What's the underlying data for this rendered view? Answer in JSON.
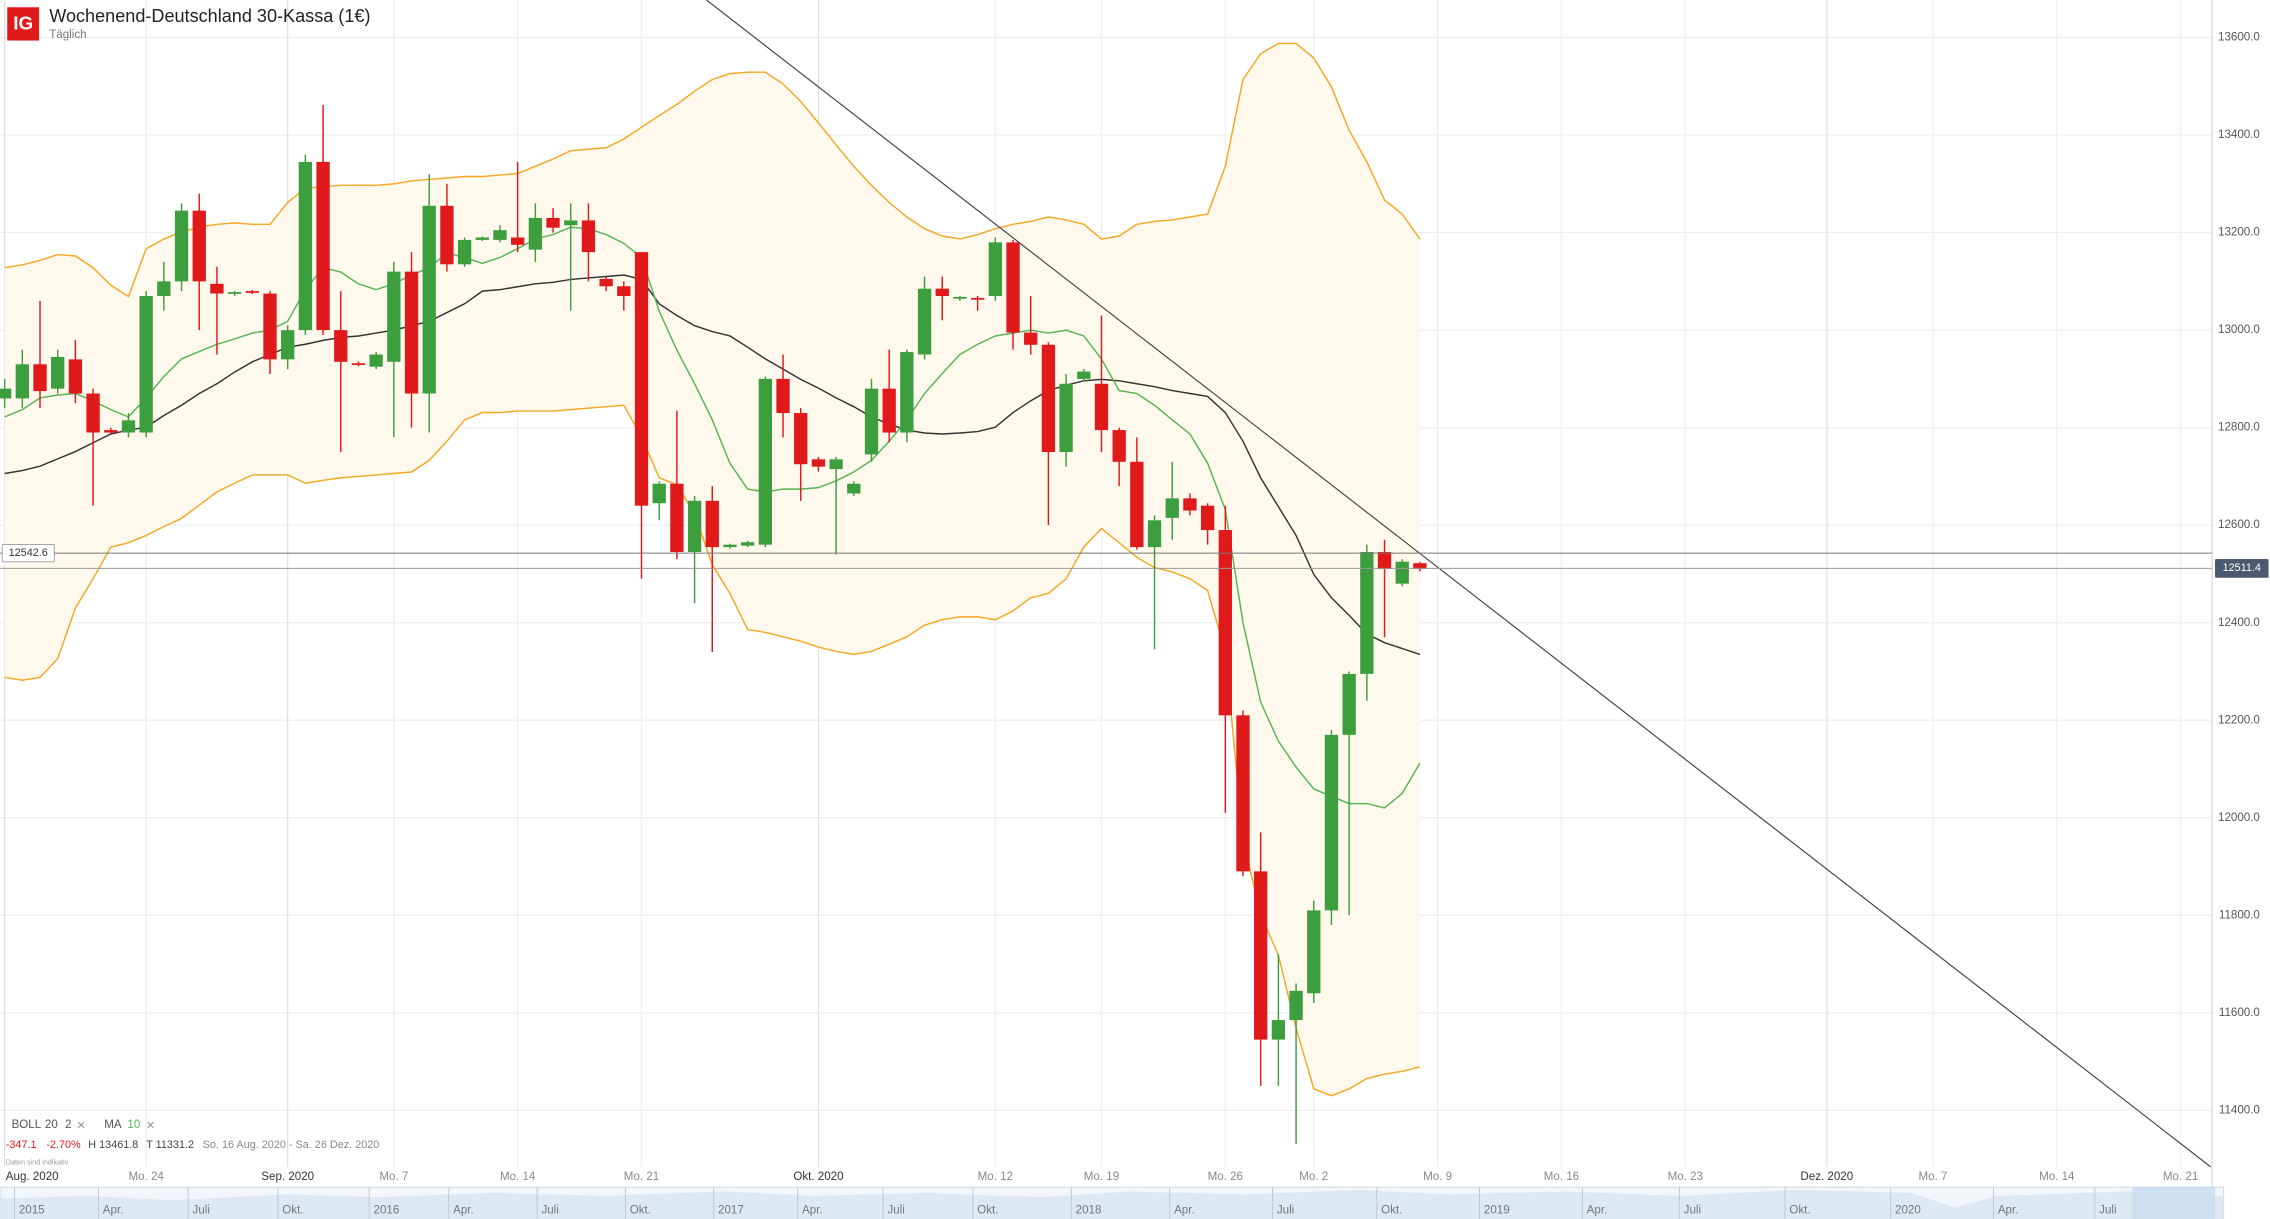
{
  "header": {
    "logo": "IG",
    "title": "Wochenend-Deutschland 30-Kassa (1€)",
    "subtitle": "Täglich"
  },
  "chart_data": {
    "type": "candlestick",
    "categories": [
      "Aug. 2020",
      null,
      null,
      null,
      null,
      null,
      null,
      null,
      "Mo. 24",
      null,
      null,
      null,
      null,
      null,
      null,
      null,
      "Sep. 2020",
      null,
      null,
      null,
      null,
      null,
      "Mo. 7",
      null,
      null,
      null,
      null,
      null,
      null,
      "Mo. 14",
      null,
      null,
      null,
      null,
      null,
      null,
      "Mo. 21",
      null,
      null,
      null,
      null,
      null,
      null,
      null,
      null,
      null,
      "Okt. 2020",
      null,
      null,
      null,
      null,
      null,
      null,
      null,
      null,
      null,
      "Mo. 12",
      null,
      null,
      null,
      null,
      null,
      "Mo. 19",
      null,
      null,
      null,
      null,
      null,
      null,
      "Mo. 26",
      null,
      null,
      null,
      null,
      "Mo. 2",
      null,
      null,
      null,
      null,
      null,
      null,
      "Mo. 9",
      null,
      null,
      null,
      null,
      null,
      null,
      "Mo. 16",
      null,
      null,
      null,
      null,
      null,
      null,
      "Mo. 23",
      null,
      null,
      null,
      null,
      null,
      null,
      null,
      "Dez. 2020",
      null,
      null,
      null,
      null,
      null,
      "Mo. 7",
      null,
      null,
      null,
      null,
      null,
      null,
      "Mo. 14",
      null,
      null,
      null,
      null,
      null,
      null,
      "Mo. 21",
      null
    ],
    "open": [
      12860,
      12860,
      12930,
      12880,
      12940,
      12870,
      12795,
      12790,
      12790,
      13070,
      13100,
      13245,
      13095,
      13075,
      13080,
      13075,
      12940,
      13000,
      13345,
      13000,
      12932,
      12925,
      12935,
      13120,
      12870,
      13255,
      13135,
      13185,
      13185,
      13190,
      13165,
      13230,
      13215,
      13225,
      13105,
      13090,
      13160,
      12645,
      12685,
      12545,
      12650,
      12555,
      12558,
      12560,
      12900,
      12830,
      12735,
      12715,
      12665,
      12745,
      12880,
      12790,
      12950,
      13085,
      13065,
      13066,
      13070,
      13180,
      12995,
      12970,
      12750,
      12900,
      12890,
      12795,
      12730,
      12555,
      12615,
      12655,
      12640,
      12590,
      12210,
      11890,
      11545,
      11585,
      11640,
      11810,
      12170,
      12295,
      12545,
      12480,
      12522,
      null,
      null,
      null,
      null,
      null,
      null,
      null,
      null,
      null,
      null,
      null,
      null,
      null,
      null,
      null,
      null,
      null,
      null,
      null,
      null,
      null,
      null,
      null,
      null,
      null,
      null,
      null,
      null,
      null,
      null,
      null,
      null,
      null,
      null,
      null,
      null,
      null,
      null,
      null,
      null,
      null,
      null,
      null,
      null
    ],
    "high": [
      12900,
      12960,
      13060,
      12960,
      12980,
      12880,
      12800,
      12830,
      13080,
      13140,
      13260,
      13280,
      13130,
      13080,
      13082,
      13080,
      13010,
      13360,
      13461.8,
      13080,
      12936,
      12955,
      13140,
      13160,
      13320,
      13300,
      13190,
      13192,
      13215,
      13345,
      13260,
      13250,
      13260,
      13260,
      13110,
      13100,
      13160,
      12690,
      12835,
      12660,
      12680,
      12562,
      12568,
      12905,
      12950,
      12840,
      12740,
      12740,
      12690,
      12900,
      12960,
      12960,
      13110,
      13110,
      13070,
      13070,
      13190,
      13185,
      13070,
      12975,
      12910,
      12920,
      13030,
      12800,
      12780,
      12620,
      12730,
      12665,
      12645,
      12640,
      12220,
      11970,
      11720,
      11660,
      11830,
      12180,
      12300,
      12560,
      12570,
      12530,
      12525,
      null,
      null,
      null,
      null,
      null,
      null,
      null,
      null,
      null,
      null,
      null,
      null,
      null,
      null,
      null,
      null,
      null,
      null,
      null,
      null,
      null,
      null,
      null,
      null,
      null,
      null,
      null,
      null,
      null,
      null,
      null,
      null,
      null,
      null,
      null,
      null,
      null,
      null,
      null,
      null,
      null,
      null,
      null,
      null
    ],
    "low": [
      12840,
      12840,
      12840,
      12870,
      12850,
      12640,
      12785,
      12780,
      12780,
      13040,
      13080,
      13000,
      12950,
      13070,
      13074,
      12910,
      12920,
      12990,
      12990,
      12750,
      12926,
      12920,
      12780,
      12800,
      12790,
      13120,
      13130,
      13183,
      13180,
      13160,
      13140,
      13200,
      13040,
      13100,
      13080,
      13040,
      12490,
      12610,
      12530,
      12440,
      12340,
      12552,
      12555,
      12555,
      12780,
      12650,
      12710,
      12540,
      12660,
      12730,
      12770,
      12770,
      12940,
      13020,
      13060,
      13040,
      13060,
      12960,
      12950,
      12600,
      12720,
      12895,
      12750,
      12680,
      12550,
      12345,
      12570,
      12620,
      12560,
      12010,
      11880,
      11450,
      11450,
      11331.2,
      11620,
      11780,
      11800,
      12240,
      12370,
      12475,
      12505,
      null,
      null,
      null,
      null,
      null,
      null,
      null,
      null,
      null,
      null,
      null,
      null,
      null,
      null,
      null,
      null,
      null,
      null,
      null,
      null,
      null,
      null,
      null,
      null,
      null,
      null,
      null,
      null,
      null,
      null,
      null,
      null,
      null,
      null,
      null,
      null,
      null,
      null,
      null,
      null,
      null,
      null,
      null,
      null
    ],
    "close": [
      12880,
      12930,
      12875,
      12945,
      12870,
      12790,
      12790,
      12815,
      13070,
      13100,
      13245,
      13100,
      13075,
      13078,
      13078,
      12940,
      13000,
      13345,
      13000,
      12935,
      12930,
      12950,
      13120,
      12870,
      13255,
      13135,
      13185,
      13190,
      13205,
      13175,
      13230,
      13210,
      13225,
      13160,
      13090,
      13070,
      12640,
      12685,
      12545,
      12650,
      12555,
      12560,
      12565,
      12900,
      12830,
      12725,
      12720,
      12735,
      12685,
      12880,
      12790,
      12955,
      13085,
      13070,
      13068,
      13065,
      13180,
      12995,
      12970,
      12750,
      12890,
      12915,
      12795,
      12730,
      12555,
      12610,
      12655,
      12630,
      12590,
      12210,
      11890,
      11545,
      11585,
      11645,
      11810,
      12170,
      12295,
      12545,
      12510,
      12525,
      12510,
      null,
      null,
      null,
      null,
      null,
      null,
      null,
      null,
      null,
      null,
      null,
      null,
      null,
      null,
      null,
      null,
      null,
      null,
      null,
      null,
      null,
      null,
      null,
      null,
      null,
      null,
      null,
      null,
      null,
      null,
      null,
      null,
      null,
      null,
      null,
      null,
      null,
      null,
      null,
      null,
      null,
      null,
      null,
      null
    ],
    "up_color": "#3c9e3c",
    "down_color": "#e0191b",
    "bollinger": {
      "name": "BOLL",
      "params": [
        20,
        2
      ],
      "color": "#f6a623",
      "middle_color": "#333333",
      "fill": "#fff9ed",
      "upper": [
        13128,
        13134,
        13143,
        13155,
        13152,
        13128,
        13092,
        13069,
        13167,
        13187,
        13202,
        13211,
        13217,
        13220,
        13217,
        13217,
        13262,
        13291,
        13294,
        13297,
        13297,
        13297,
        13300,
        13306,
        13309,
        13312,
        13315,
        13315,
        13318,
        13321,
        13336,
        13351,
        13368,
        13371,
        13374,
        13392,
        13416,
        13440,
        13463,
        13490,
        13514,
        13526,
        13529,
        13529,
        13505,
        13469,
        13425,
        13380,
        13336,
        13297,
        13262,
        13232,
        13208,
        13193,
        13187,
        13196,
        13208,
        13217,
        13223,
        13232,
        13226,
        13217,
        13187,
        13193,
        13217,
        13223,
        13226,
        13232,
        13238,
        13336,
        13514,
        13567,
        13588,
        13588,
        13558,
        13499,
        13410,
        13345,
        13267,
        13238,
        13187,
        null,
        null,
        null,
        null,
        null,
        null,
        null,
        null,
        null,
        null,
        null,
        null,
        null,
        null,
        null,
        null,
        null,
        null,
        null,
        null,
        null,
        null,
        null,
        null,
        null,
        null,
        null,
        null,
        null,
        null,
        null,
        null,
        null,
        null,
        null,
        null,
        null,
        null,
        null,
        null,
        null,
        null,
        null,
        null
      ],
      "middle": [
        12706,
        12712,
        12721,
        12736,
        12751,
        12769,
        12787,
        12795,
        12801,
        12825,
        12846,
        12870,
        12890,
        12914,
        12935,
        12950,
        12965,
        12971,
        12979,
        12985,
        12988,
        12994,
        13000,
        13009,
        13018,
        13036,
        13054,
        13080,
        13083,
        13089,
        13095,
        13098,
        13104,
        13107,
        13110,
        13113,
        13104,
        13054,
        13030,
        13009,
        12997,
        12988,
        12965,
        12941,
        12920,
        12899,
        12881,
        12861,
        12843,
        12822,
        12807,
        12795,
        12789,
        12787,
        12789,
        12792,
        12801,
        12831,
        12855,
        12876,
        12887,
        12896,
        12899,
        12896,
        12890,
        12884,
        12876,
        12870,
        12864,
        12831,
        12772,
        12697,
        12638,
        12579,
        12499,
        12451,
        12415,
        12377,
        12359,
        12347,
        12335,
        null,
        null,
        null,
        null,
        null,
        null,
        null,
        null,
        null,
        null,
        null,
        null,
        null,
        null,
        null,
        null,
        null,
        null,
        null,
        null,
        null,
        null,
        null,
        null,
        null,
        null,
        null,
        null,
        null,
        null,
        null,
        null,
        null,
        null,
        null,
        null,
        null,
        null,
        null,
        null,
        null,
        null,
        null,
        null
      ],
      "lower": [
        12288,
        12282,
        12288,
        12326,
        12430,
        12490,
        12555,
        12564,
        12579,
        12597,
        12614,
        12641,
        12668,
        12686,
        12703,
        12703,
        12703,
        12686,
        12692,
        12697,
        12700,
        12703,
        12706,
        12709,
        12733,
        12772,
        12816,
        12831,
        12831,
        12834,
        12834,
        12834,
        12837,
        12840,
        12843,
        12846,
        12781,
        12697,
        12683,
        12623,
        12519,
        12460,
        12386,
        12380,
        12371,
        12362,
        12350,
        12341,
        12335,
        12341,
        12356,
        12371,
        12395,
        12406,
        12412,
        12412,
        12406,
        12424,
        12451,
        12460,
        12490,
        12555,
        12593,
        12564,
        12534,
        12513,
        12504,
        12490,
        12466,
        12341,
        11955,
        11801,
        11718,
        11569,
        11444,
        11430,
        11444,
        11465,
        11474,
        11480,
        11489,
        null,
        null,
        null,
        null,
        null,
        null,
        null,
        null,
        null,
        null,
        null,
        null,
        null,
        null,
        null,
        null,
        null,
        null,
        null,
        null,
        null,
        null,
        null,
        null,
        null,
        null,
        null,
        null,
        null,
        null,
        null,
        null,
        null,
        null,
        null,
        null,
        null,
        null,
        null,
        null,
        null,
        null,
        null,
        null
      ]
    },
    "ma": {
      "name": "MA",
      "params": [
        10
      ],
      "color": "#55b555",
      "values": [
        12822,
        12837,
        12861,
        12867,
        12870,
        12855,
        12837,
        12822,
        12861,
        12905,
        12941,
        12956,
        12971,
        12982,
        12994,
        13000,
        13018,
        13083,
        13128,
        13119,
        13095,
        13083,
        13095,
        13113,
        13128,
        13158,
        13149,
        13137,
        13149,
        13167,
        13187,
        13196,
        13211,
        13208,
        13196,
        13178,
        13149,
        13039,
        12959,
        12890,
        12816,
        12727,
        12674,
        12668,
        12674,
        12674,
        12677,
        12691,
        12709,
        12733,
        12772,
        12816,
        12870,
        12911,
        12950,
        12971,
        12988,
        12994,
        13000,
        12994,
        13000,
        12988,
        12941,
        12876,
        12870,
        12846,
        12816,
        12787,
        12727,
        12632,
        12400,
        12237,
        12157,
        12104,
        12059,
        12044,
        12029,
        12029,
        12020,
        12050,
        12112,
        null,
        null,
        null,
        null,
        null,
        null,
        null,
        null,
        null,
        null,
        null,
        null,
        null,
        null,
        null,
        null,
        null,
        null,
        null,
        null,
        null,
        null,
        null,
        null,
        null,
        null,
        null,
        null,
        null,
        null,
        null,
        null,
        null,
        null,
        null,
        null,
        null,
        null,
        null,
        null,
        null,
        null,
        null,
        null
      ]
    },
    "ylim": [
      11284,
      13677
    ],
    "yticks": [
      {
        "value": 11400,
        "label": "11400.0"
      },
      {
        "value": 11600,
        "label": "11600.0"
      },
      {
        "value": 11800,
        "label": "11800.0"
      },
      {
        "value": 12000,
        "label": "12000.0"
      },
      {
        "value": 12200,
        "label": "12200.0"
      },
      {
        "value": 12400,
        "label": "12400.0"
      },
      {
        "value": 12600,
        "label": "12600.0"
      },
      {
        "value": 12800,
        "label": "12800.0"
      },
      {
        "value": 13000,
        "label": "13000.0"
      },
      {
        "value": 13200,
        "label": "13200.0"
      },
      {
        "value": 13400,
        "label": "13400.0"
      },
      {
        "value": 13600,
        "label": "13600.0"
      }
    ],
    "grid": true,
    "price_lines": [
      {
        "value": 12542.6,
        "side": "left"
      },
      {
        "value": 12511.4,
        "side": "right"
      }
    ]
  },
  "stats": {
    "change": "-347.1",
    "change_pct": "-2.70%",
    "high": "H 13461.8",
    "low": "T 11331.2",
    "range": "So. 16 Aug. 2020 - Sa. 26 Dez. 2020",
    "note": "Daten sind indikativ"
  },
  "navigator": {
    "labels": [
      "2015",
      "Apr.",
      "Juli",
      "Okt.",
      "2016",
      "Apr.",
      "Juli",
      "Okt.",
      "2017",
      "Apr.",
      "Juli",
      "Okt.",
      "2018",
      "Apr.",
      "Juli",
      "Okt.",
      "2019",
      "Apr.",
      "Juli",
      "Okt.",
      "2020",
      "Apr.",
      "Juli"
    ]
  }
}
